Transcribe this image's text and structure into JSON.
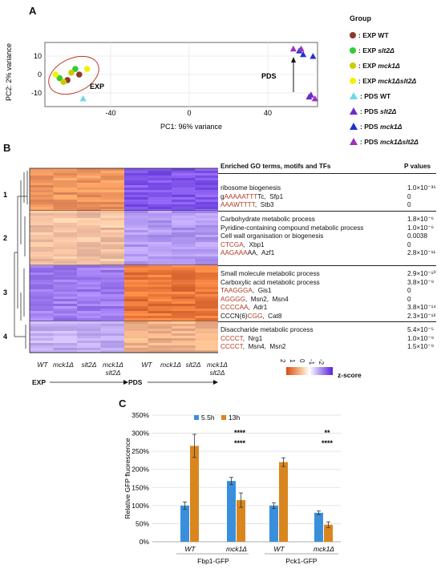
{
  "panelA": {
    "letter": "A",
    "xlabel": "PC1:  96% variance",
    "ylabel": "PC2: 2% variance",
    "xticks": [
      "-40",
      "0",
      "40"
    ],
    "yticks": [
      "10",
      "0",
      "-10"
    ],
    "exp_label": "EXP",
    "pds_label": "PDS",
    "legend_title": "Group",
    "legend": [
      {
        "prefix": ": EXP ",
        "strain": "WT",
        "italic": false,
        "color": "#8b3a2a",
        "shape": "circle"
      },
      {
        "prefix": ": EXP ",
        "strain": "slt2Δ",
        "italic": true,
        "color": "#33cc33",
        "shape": "circle"
      },
      {
        "prefix": ": EXP ",
        "strain": "mck1Δ",
        "italic": true,
        "color": "#cccc00",
        "shape": "circle"
      },
      {
        "prefix": ": EXP ",
        "strain": "mck1Δslt2Δ",
        "italic": true,
        "color": "#f2f200",
        "shape": "circle"
      },
      {
        "prefix": ": PDS ",
        "strain": "WT",
        "italic": false,
        "color": "#6fd8e6",
        "shape": "triangle"
      },
      {
        "prefix": ": PDS ",
        "strain": "slt2Δ",
        "italic": true,
        "color": "#6a2ad0",
        "shape": "triangle"
      },
      {
        "prefix": ": PDS ",
        "strain": "mck1Δ",
        "italic": true,
        "color": "#2233cc",
        "shape": "triangle"
      },
      {
        "prefix": ": PDS ",
        "strain": "mck1Δslt2Δ",
        "italic": true,
        "color": "#a030c0",
        "shape": "triangle"
      }
    ]
  },
  "panelB": {
    "letter": "B",
    "go_header": "Enriched GO terms, motifs and TFs",
    "pv_header": "P values",
    "clusters": [
      "1",
      "2",
      "3",
      "4"
    ],
    "terms": [
      [
        {
          "parts": [
            {
              "t": "ribosome biogenesis",
              "m": false
            }
          ],
          "p": "1.0×10⁻³⁵"
        },
        {
          "parts": [
            {
              "t": "g",
              "m": false
            },
            {
              "t": "AAAAATTT",
              "m": true
            },
            {
              "t": "Tc,  Sfp1",
              "m": false
            }
          ],
          "p": "0"
        },
        {
          "parts": [
            {
              "t": "AAAWTTTT",
              "m": true
            },
            {
              "t": ",  Stb3",
              "m": false
            }
          ],
          "p": "0"
        }
      ],
      [
        {
          "parts": [
            {
              "t": "Carbohydrate metabolic process",
              "m": false
            }
          ],
          "p": "1.8×10⁻⁶"
        },
        {
          "parts": [
            {
              "t": "Pyridine-containing compound metabolic process",
              "m": false
            }
          ],
          "p": "1.0×10⁻⁶"
        },
        {
          "parts": [
            {
              "t": "Cell wall organisation or biogenesis",
              "m": false
            }
          ],
          "p": "0.0038"
        },
        {
          "parts": [
            {
              "t": "CTCGA",
              "m": true
            },
            {
              "t": ",  Xbp1",
              "m": false
            }
          ],
          "p": "0"
        },
        {
          "parts": [
            {
              "t": "AAGAAA",
              "m": true
            },
            {
              "t": "AA,  Azf1",
              "m": false
            }
          ],
          "p": "2.8×10⁻¹¹"
        }
      ],
      [
        {
          "parts": [
            {
              "t": "Small molecule metabolic process",
              "m": false
            }
          ],
          "p": "2.9×10⁻¹⁰"
        },
        {
          "parts": [
            {
              "t": "Carboxylic acid metabolic process",
              "m": false
            }
          ],
          "p": "3.8×10⁻⁹"
        },
        {
          "parts": [
            {
              "t": "TAAGGGA",
              "m": true
            },
            {
              "t": ",  Gis1",
              "m": false
            }
          ],
          "p": "0"
        },
        {
          "parts": [
            {
              "t": "AGGGG",
              "m": true
            },
            {
              "t": ",  Msn2,  Msn4",
              "m": false
            }
          ],
          "p": "0"
        },
        {
          "parts": [
            {
              "t": "CCCCAA",
              "m": true
            },
            {
              "t": ",  Adr1",
              "m": false
            }
          ],
          "p": "3.8×10⁻¹⁴"
        },
        {
          "parts": [
            {
              "t": "CCCN(6)",
              "m": false
            },
            {
              "t": "CGG",
              "m": true
            },
            {
              "t": ",  Cat8",
              "m": false
            }
          ],
          "p": "2.3×10⁻¹³"
        }
      ],
      [
        {
          "parts": [
            {
              "t": "Disaccharide metabolic process",
              "m": false
            }
          ],
          "p": "5.4×10⁻⁵"
        },
        {
          "parts": [
            {
              "t": "CCCCT",
              "m": true
            },
            {
              "t": ",  Nrg1",
              "m": false
            }
          ],
          "p": "1.0×10⁻⁹"
        },
        {
          "parts": [
            {
              "t": "CCCCT",
              "m": true
            },
            {
              "t": ",  Msn4,  Msn2",
              "m": false
            }
          ],
          "p": "1.5×10⁻⁹"
        }
      ]
    ],
    "col_labels": [
      "WT",
      "mck1Δ",
      "slt2Δ",
      "mck1Δ slt2Δ",
      "WT",
      "mck1Δ",
      "slt2Δ",
      "mck1Δ slt2Δ"
    ],
    "exp_label": "EXP",
    "pds_label": "PDS",
    "zscore_ticks": [
      "2",
      "1",
      "0",
      "-1",
      "-2"
    ],
    "zscore_label": "z-score"
  },
  "chart_data": {
    "type": "bar",
    "panel": "C",
    "categories": [
      "WT",
      "mck1Δ",
      "WT",
      "mck1Δ"
    ],
    "groups": [
      "Fbp1-GFP",
      "Pck1-GFP"
    ],
    "series": [
      {
        "name": "5.5h",
        "color": "#3a8fdc",
        "values": [
          100,
          168,
          100,
          80
        ],
        "errors": [
          10,
          10,
          8,
          5
        ]
      },
      {
        "name": "13h",
        "color": "#d9861e",
        "values": [
          265,
          115,
          220,
          47
        ],
        "errors": [
          32,
          20,
          12,
          8
        ]
      }
    ],
    "ylabel": "Relative GFP fluorescence",
    "ylim": [
      0,
      350
    ],
    "yticks": [
      "0%",
      "50%",
      "100%",
      "150%",
      "200%",
      "250%",
      "300%",
      "350%"
    ],
    "grid": true,
    "legend_position": "top-left",
    "annotations": [
      {
        "text": "****",
        "row": 1,
        "col": 1
      },
      {
        "text": "****",
        "row": 2,
        "col": 1
      },
      {
        "text": "**",
        "row": 1,
        "col": 3
      },
      {
        "text": "****",
        "row": 2,
        "col": 3
      }
    ]
  }
}
